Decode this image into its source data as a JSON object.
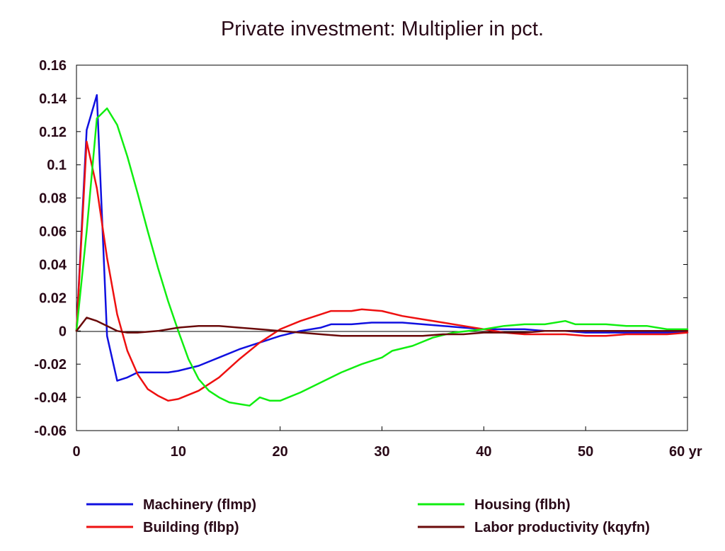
{
  "chart_data": {
    "type": "line",
    "title": "Private investment: Multiplier in pct.",
    "xlabel": "",
    "ylabel": "",
    "x_tick_labels": [
      "0",
      "10",
      "20",
      "30",
      "40",
      "50",
      "60 yr"
    ],
    "x_ticks": [
      0,
      10,
      20,
      30,
      40,
      50,
      60
    ],
    "y_tick_labels": [
      "0.16",
      "0.14",
      "0.12",
      "0.1",
      "0.08",
      "0.06",
      "0.04",
      "0.02",
      "0",
      "-0.02",
      "-0.04",
      "-0.06"
    ],
    "y_ticks": [
      0.16,
      0.14,
      0.12,
      0.1,
      0.08,
      0.06,
      0.04,
      0.02,
      0,
      -0.02,
      -0.04,
      -0.06
    ],
    "xlim": [
      0,
      60
    ],
    "ylim": [
      -0.06,
      0.16
    ],
    "grid": false,
    "legend_position": "bottom",
    "series": [
      {
        "name": "Machinery (flmp)",
        "color": "#1010e0",
        "x": [
          0,
          1,
          2,
          3,
          4,
          5,
          6,
          7,
          8,
          9,
          10,
          12,
          14,
          16,
          18,
          20,
          22,
          24,
          25,
          27,
          29,
          30,
          32,
          34,
          36,
          38,
          40,
          42,
          44,
          46,
          48,
          50,
          52,
          54,
          56,
          58,
          60
        ],
        "y": [
          0,
          0.121,
          0.142,
          -0.003,
          -0.03,
          -0.028,
          -0.025,
          -0.025,
          -0.025,
          -0.025,
          -0.024,
          -0.021,
          -0.016,
          -0.011,
          -0.007,
          -0.003,
          0.0,
          0.002,
          0.004,
          0.004,
          0.005,
          0.005,
          0.005,
          0.004,
          0.003,
          0.002,
          0.001,
          0.001,
          0.001,
          0.0,
          0.0,
          -0.001,
          -0.001,
          -0.001,
          -0.001,
          -0.001,
          -0.001
        ]
      },
      {
        "name": "Building (flbp)",
        "color": "#ee1010",
        "x": [
          0,
          1,
          2,
          3,
          4,
          5,
          6,
          7,
          8,
          9,
          10,
          12,
          14,
          16,
          18,
          20,
          22,
          24,
          25,
          27,
          28,
          30,
          32,
          34,
          36,
          38,
          40,
          42,
          44,
          46,
          48,
          50,
          52,
          54,
          56,
          58,
          60
        ],
        "y": [
          0,
          0.114,
          0.086,
          0.044,
          0.01,
          -0.012,
          -0.026,
          -0.035,
          -0.039,
          -0.042,
          -0.041,
          -0.036,
          -0.028,
          -0.017,
          -0.007,
          0.001,
          0.006,
          0.01,
          0.012,
          0.012,
          0.013,
          0.012,
          0.009,
          0.007,
          0.005,
          0.003,
          0.001,
          -0.001,
          -0.002,
          -0.002,
          -0.002,
          -0.003,
          -0.003,
          -0.002,
          -0.002,
          -0.002,
          -0.001
        ]
      },
      {
        "name": "Housing (flbh)",
        "color": "#10ee10",
        "x": [
          0,
          1,
          2,
          3,
          4,
          5,
          6,
          7,
          8,
          9,
          10,
          11,
          12,
          13,
          14,
          15,
          16,
          17,
          18,
          19,
          20,
          22,
          24,
          26,
          28,
          30,
          31,
          33,
          35,
          37,
          40,
          42,
          44,
          46,
          48,
          49,
          50,
          52,
          54,
          56,
          58,
          60
        ],
        "y": [
          0,
          0.06,
          0.128,
          0.134,
          0.124,
          0.105,
          0.083,
          0.06,
          0.038,
          0.018,
          0.0,
          -0.017,
          -0.029,
          -0.036,
          -0.04,
          -0.043,
          -0.044,
          -0.045,
          -0.04,
          -0.042,
          -0.042,
          -0.037,
          -0.031,
          -0.025,
          -0.02,
          -0.016,
          -0.012,
          -0.009,
          -0.004,
          -0.001,
          0.001,
          0.003,
          0.004,
          0.004,
          0.006,
          0.004,
          0.004,
          0.004,
          0.003,
          0.003,
          0.001,
          0.001
        ]
      },
      {
        "name": "Labor productivity (kqyfn)",
        "color": "#6a0a0a",
        "x": [
          0,
          1,
          2,
          3,
          4,
          5,
          6,
          8,
          10,
          12,
          14,
          16,
          18,
          20,
          22,
          24,
          26,
          28,
          30,
          32,
          34,
          36,
          38,
          40,
          42,
          44,
          46,
          48,
          50,
          52,
          54,
          56,
          58,
          60
        ],
        "y": [
          0,
          0.008,
          0.006,
          0.003,
          0.0,
          -0.001,
          -0.001,
          0.0,
          0.002,
          0.003,
          0.003,
          0.002,
          0.001,
          0.0,
          -0.001,
          -0.002,
          -0.003,
          -0.003,
          -0.003,
          -0.003,
          -0.003,
          -0.002,
          -0.002,
          -0.001,
          -0.001,
          -0.001,
          0.0,
          0.0,
          0.0,
          0.0,
          0.0,
          0.0,
          0.0,
          0.0
        ]
      }
    ],
    "legend": [
      {
        "label": "Machinery (flmp)",
        "color": "#1010e0"
      },
      {
        "label": "Housing (flbh)",
        "color": "#10ee10"
      },
      {
        "label": "Building (flbp)",
        "color": "#ee1010"
      },
      {
        "label": "Labor productivity (kqyfn)",
        "color": "#6a0a0a"
      }
    ]
  }
}
